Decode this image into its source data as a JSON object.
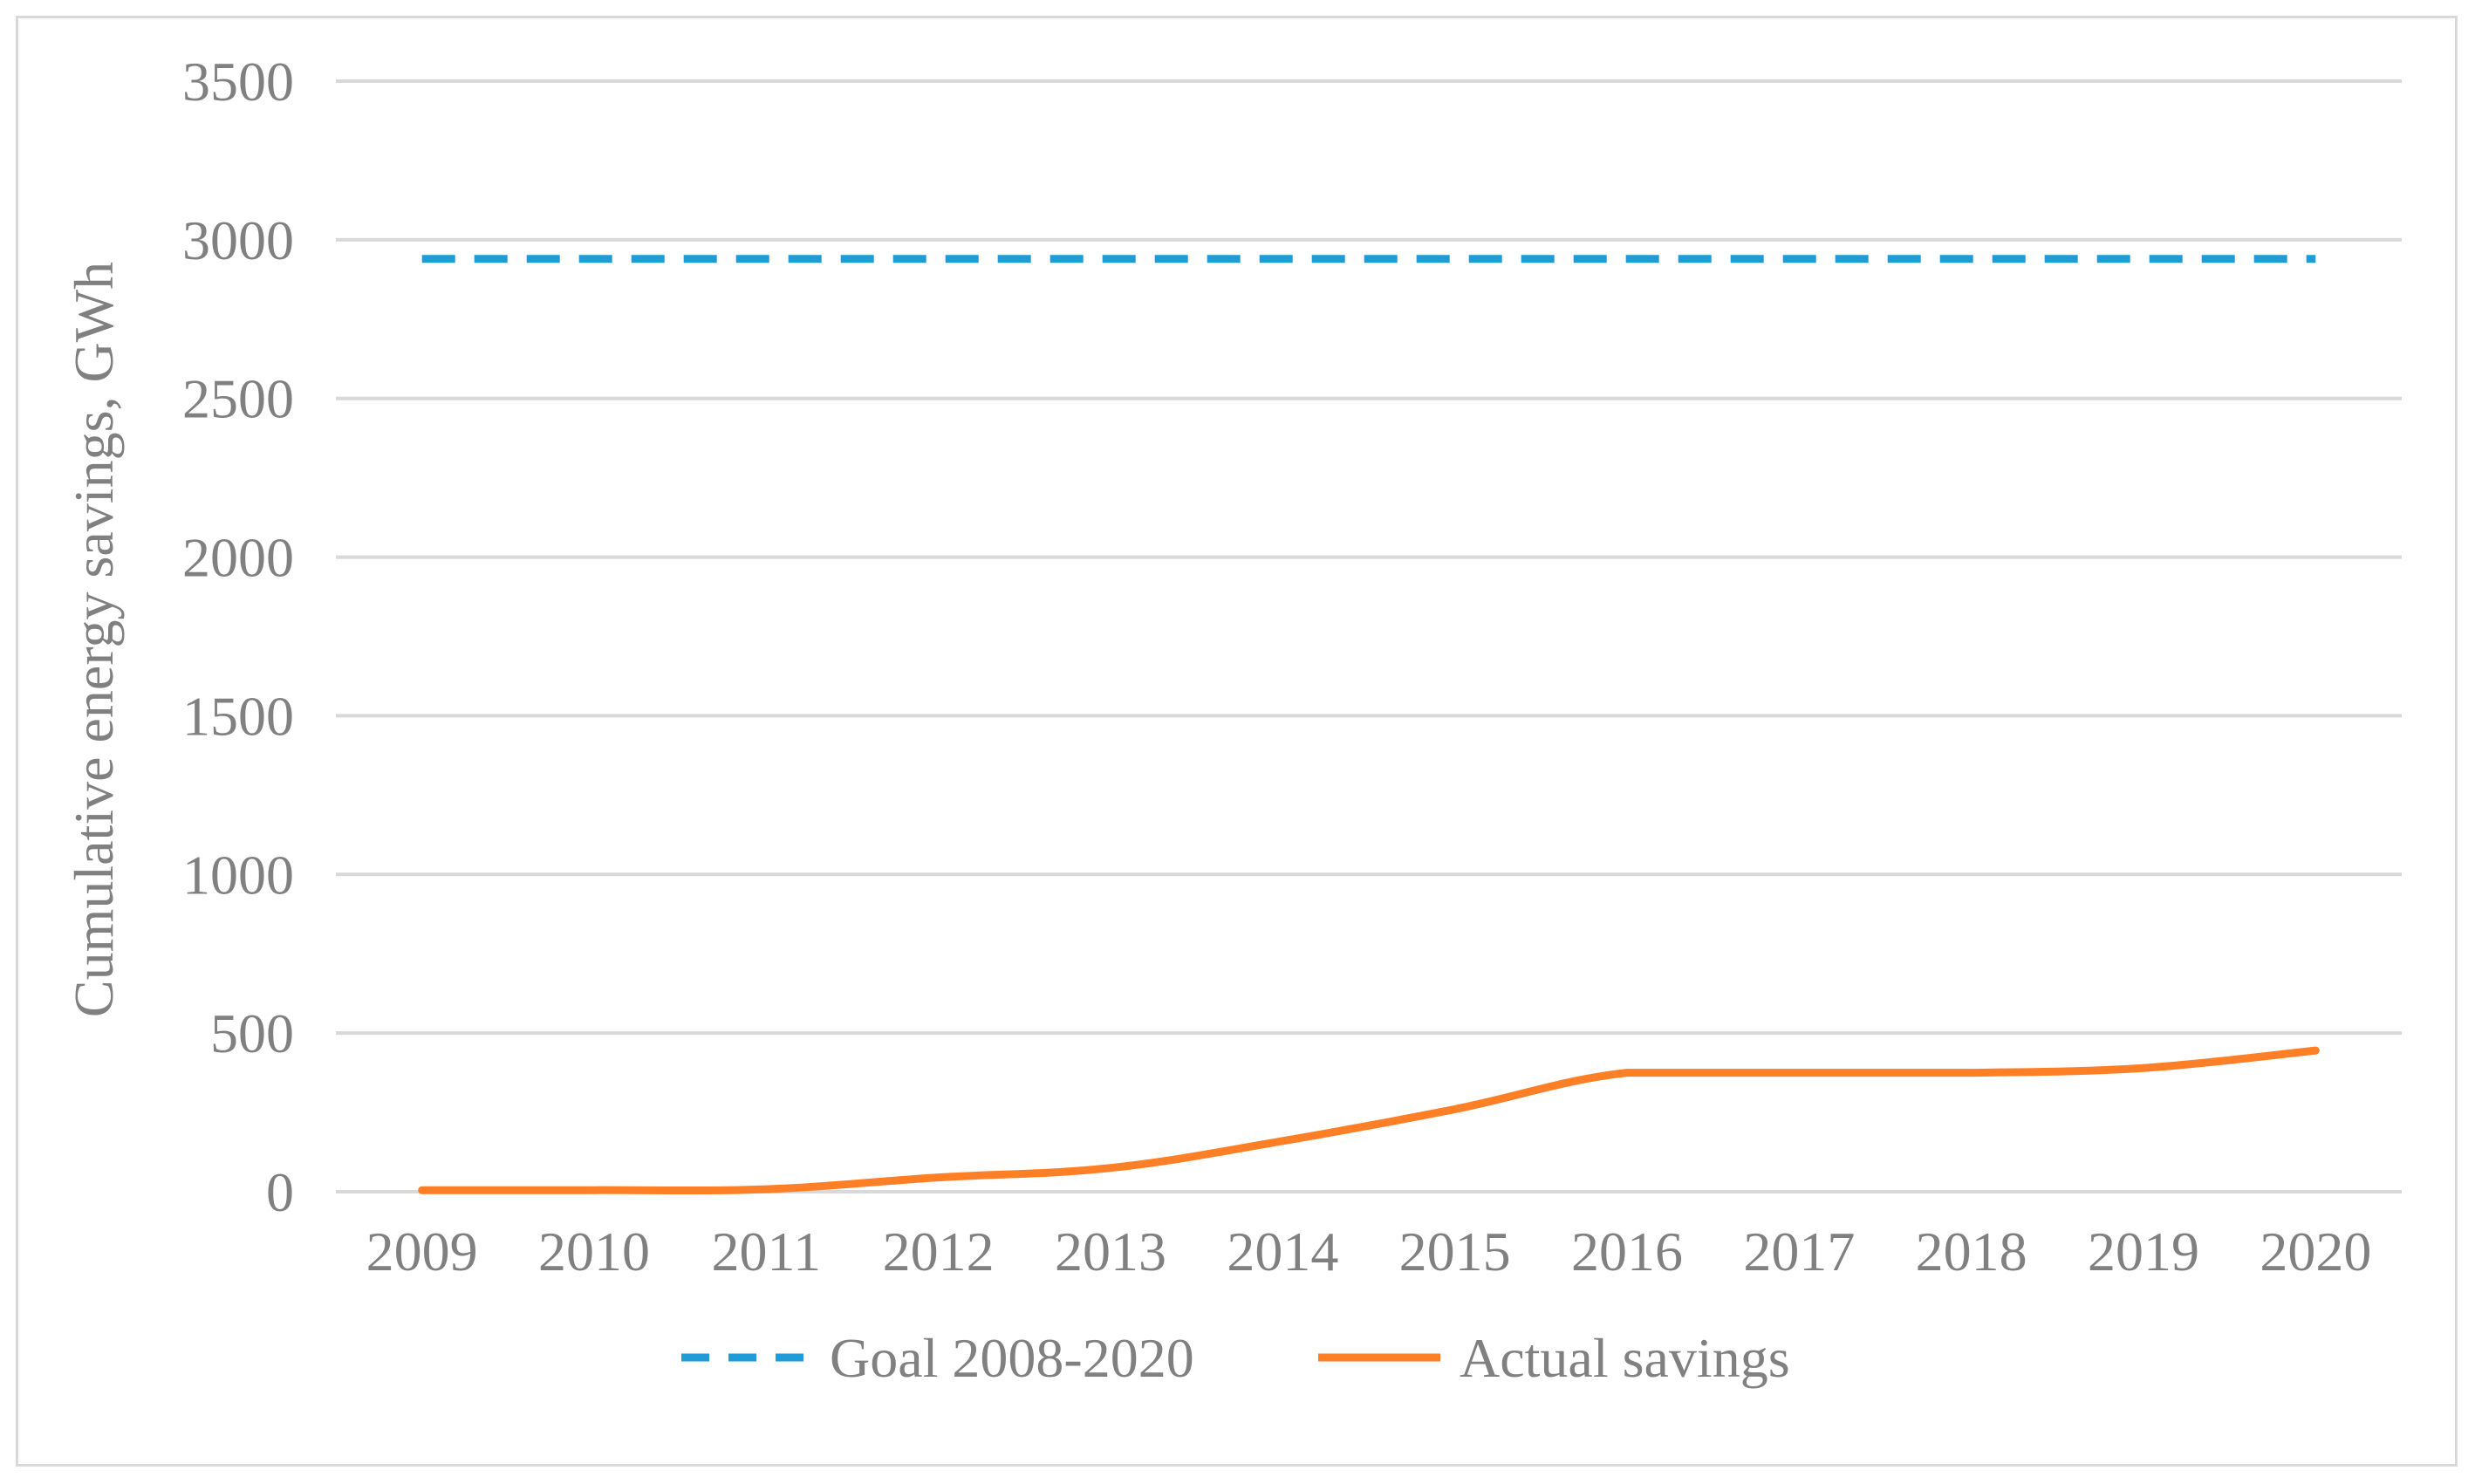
{
  "chart_data": {
    "type": "line",
    "title": "",
    "xlabel": "",
    "ylabel": "Cumulative energy savings, GWh",
    "categories": [
      "2009",
      "2010",
      "2011",
      "2012",
      "2013",
      "2014",
      "2015",
      "2016",
      "2017",
      "2018",
      "2019",
      "2020"
    ],
    "ylim": [
      0,
      3500
    ],
    "yticks": [
      0,
      500,
      1000,
      1500,
      2000,
      2500,
      3000,
      3500
    ],
    "grid": "horizontal",
    "legend_position": "bottom",
    "series": [
      {
        "name": "Goal 2008-2020",
        "line_style": "dashed",
        "color": "#1f9bd7",
        "values": [
          2940,
          2940,
          2940,
          2940,
          2940,
          2940,
          2940,
          2940,
          2940,
          2940,
          2940,
          2940
        ]
      },
      {
        "name": "Actual savings",
        "line_style": "solid",
        "color": "#ff7f27",
        "values": [
          5,
          5,
          8,
          45,
          75,
          160,
          260,
          375,
          375,
          375,
          390,
          445
        ]
      }
    ]
  }
}
